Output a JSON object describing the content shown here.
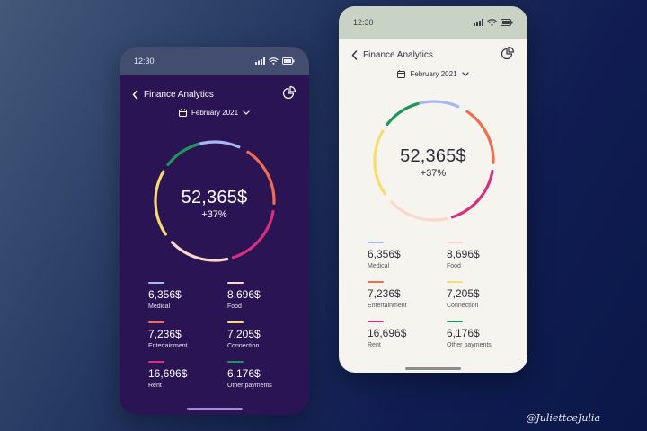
{
  "status_time": "12:30",
  "header": {
    "title": "Finance Analytics"
  },
  "period": {
    "selected": "February 2021"
  },
  "summary": {
    "total": "52,365$",
    "change": "+37%"
  },
  "categories": [
    {
      "label": "Medical",
      "value": "6,356$",
      "color": "#a9b6f5"
    },
    {
      "label": "Food",
      "value": "8,696$",
      "color": "#fcd8cc"
    },
    {
      "label": "Entertainment",
      "value": "7,236$",
      "color": "#f26d4f"
    },
    {
      "label": "Connection",
      "value": "7,205$",
      "color": "#f9dd6a"
    },
    {
      "label": "Rent",
      "value": "16,696$",
      "color": "#d62f7c"
    },
    {
      "label": "Other payments",
      "value": "6,176$",
      "color": "#21945a"
    }
  ],
  "icons": {
    "back": "chevron-left-icon",
    "chart": "pie-chart-icon",
    "calendar": "calendar-icon",
    "dropdown": "chevron-down-icon",
    "signal": "signal-icon",
    "wifi": "wifi-icon",
    "battery": "battery-icon"
  },
  "signature": "@JuliettceJulia"
}
